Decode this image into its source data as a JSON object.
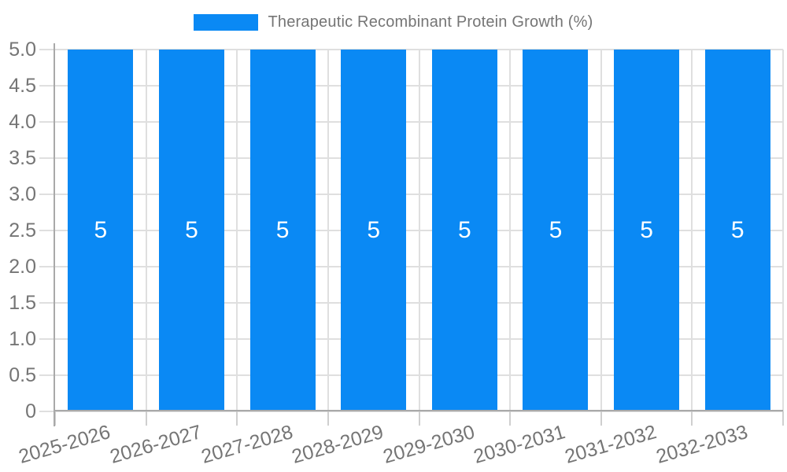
{
  "chart_data": {
    "type": "bar",
    "title": "Therapeutic Recombinant Protein Growth (%)",
    "legend": {
      "label": "Therapeutic Recombinant Protein Growth (%)",
      "position": "top-center"
    },
    "categories": [
      "2025-2026",
      "2026-2027",
      "2027-2028",
      "2028-2029",
      "2029-2030",
      "2030-2031",
      "2031-2032",
      "2032-2033"
    ],
    "series": [
      {
        "name": "Therapeutic Recombinant Protein Growth (%)",
        "values": [
          5,
          5,
          5,
          5,
          5,
          5,
          5,
          5
        ]
      }
    ],
    "bar_value_labels": [
      "5",
      "5",
      "5",
      "5",
      "5",
      "5",
      "5",
      "5"
    ],
    "xlabel": "",
    "ylabel": "",
    "ylim": [
      0,
      5
    ],
    "ytick_labels": [
      "5.0",
      "4.5",
      "4.0",
      "3.5",
      "3.0",
      "2.5",
      "2.0",
      "1.5",
      "1.0",
      "0.5",
      "0"
    ],
    "ytick_step": 0.5,
    "grid": "horizontal and vertical light gray gridlines",
    "xtick_label_rotation_deg": -16,
    "colors": {
      "bar": "#0a89f4",
      "bar_label_text": "#ffffff",
      "axis_line": "#a9a9a9",
      "grid_line": "#dfdfdf",
      "tick_line": "#cfcfcf",
      "label_text": "#757575"
    }
  }
}
